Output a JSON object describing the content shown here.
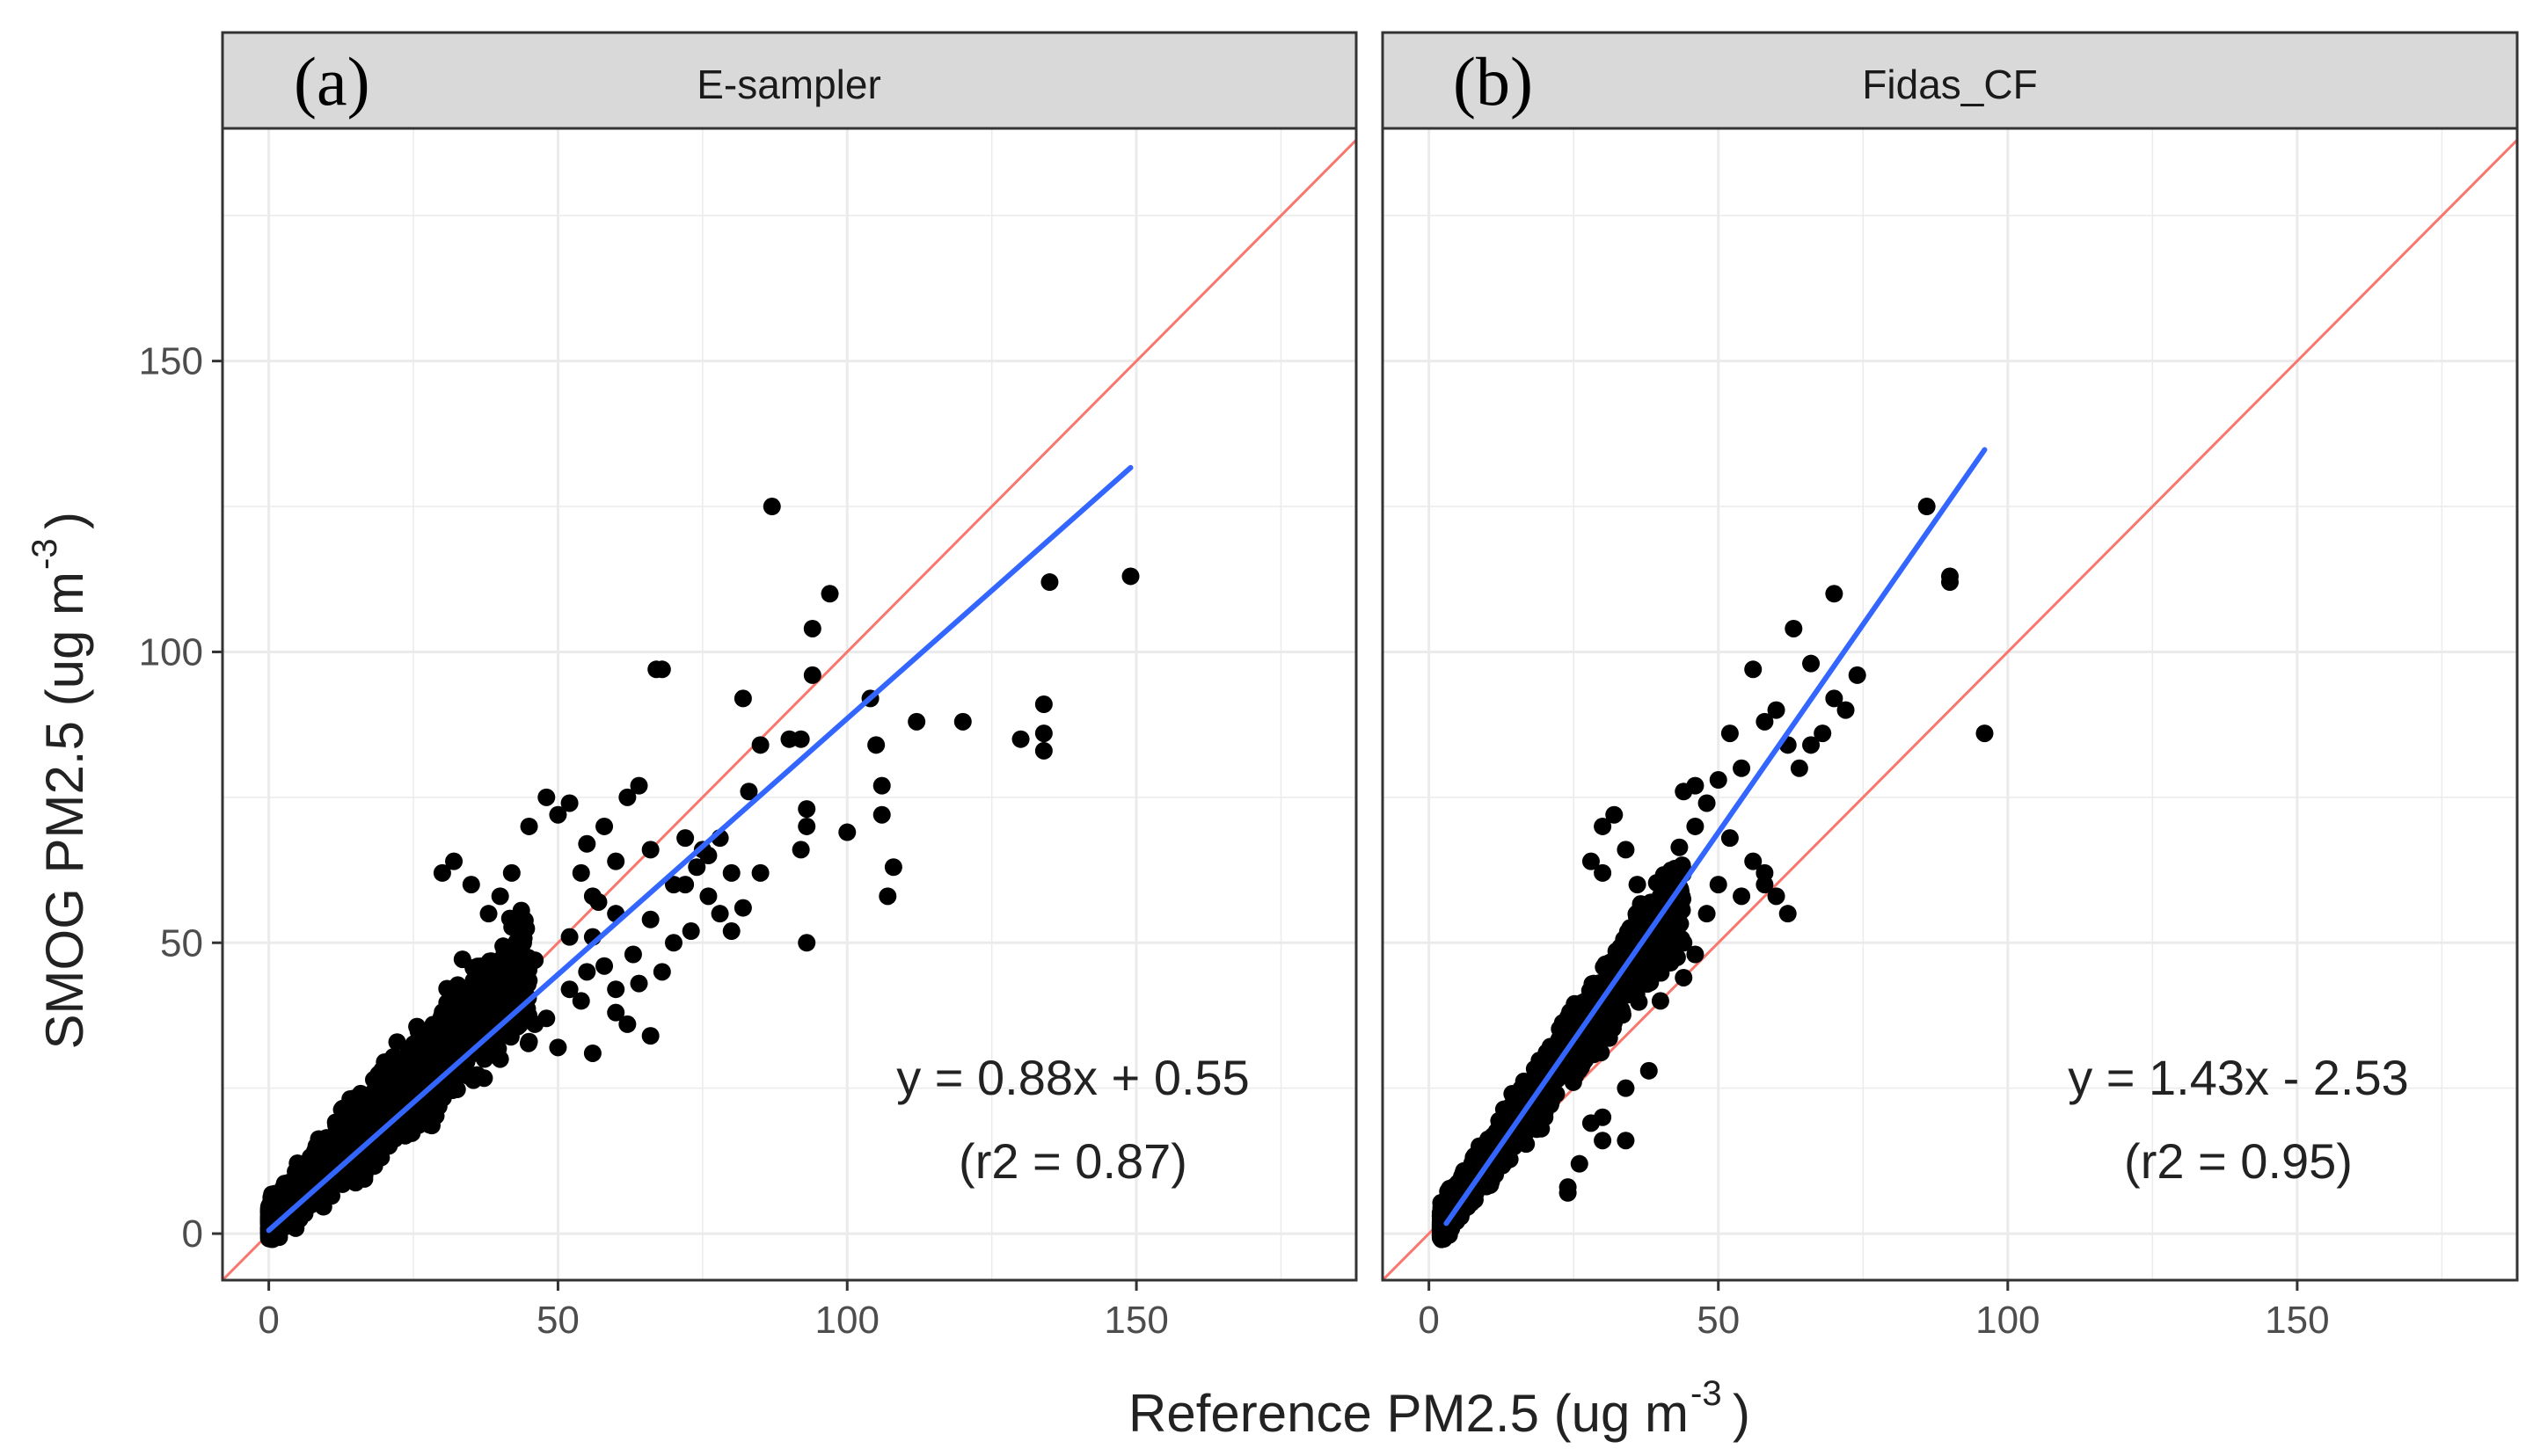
{
  "figure": {
    "x_axis_label": "Reference PM2.5 (ug m",
    "y_axis_label": "SMOG PM2.5 (ug m",
    "unit_exponent": "-3"
  },
  "chart_data": [
    {
      "type": "scatter",
      "panel_tag": "(a)",
      "title": "E-sampler",
      "xlabel": "Reference PM2.5 (ug m-3)",
      "ylabel": "SMOG PM2.5 (ug m-3)",
      "xlim": [
        -8,
        188
      ],
      "ylim": [
        -8,
        190
      ],
      "x_ticks": [
        0,
        50,
        100,
        150
      ],
      "y_ticks": [
        0,
        50,
        100,
        150
      ],
      "grid": true,
      "identity_line": {
        "slope": 1,
        "intercept": 0,
        "color": "#f8766d"
      },
      "fit_line": {
        "slope": 0.88,
        "intercept": 0.55,
        "x_range": [
          0,
          149
        ],
        "color": "#3366ff"
      },
      "annotations": [
        "y = 0.88x + 0.55",
        "(r2 = 0.87)"
      ],
      "point_color": "#000000",
      "dense_cloud": {
        "x_min": 0,
        "x_max": 45,
        "slope": 0.95,
        "intercept": 2,
        "spread": 8,
        "count": 1800,
        "seed": 11
      },
      "points": [
        [
          87,
          125
        ],
        [
          149,
          113
        ],
        [
          135,
          112
        ],
        [
          97,
          110
        ],
        [
          94,
          104
        ],
        [
          68,
          97
        ],
        [
          94,
          96
        ],
        [
          82,
          92
        ],
        [
          104,
          92
        ],
        [
          134,
          91
        ],
        [
          90,
          85
        ],
        [
          92,
          85
        ],
        [
          112,
          88
        ],
        [
          120,
          88
        ],
        [
          130,
          85
        ],
        [
          134,
          83
        ],
        [
          134,
          86
        ],
        [
          83,
          76
        ],
        [
          85,
          84
        ],
        [
          105,
          84
        ],
        [
          106,
          77
        ],
        [
          106,
          72
        ],
        [
          93,
          73
        ],
        [
          93,
          70
        ],
        [
          92,
          66
        ],
        [
          75,
          66
        ],
        [
          78,
          68
        ],
        [
          80,
          62
        ],
        [
          85,
          62
        ],
        [
          72,
          60
        ],
        [
          74,
          63
        ],
        [
          100,
          69
        ],
        [
          108,
          63
        ],
        [
          107,
          58
        ],
        [
          93,
          50
        ],
        [
          48,
          75
        ],
        [
          50,
          72
        ],
        [
          52,
          74
        ],
        [
          55,
          67
        ],
        [
          58,
          70
        ],
        [
          62,
          75
        ],
        [
          64,
          77
        ],
        [
          60,
          64
        ],
        [
          66,
          66
        ],
        [
          67,
          97
        ],
        [
          70,
          60
        ],
        [
          57,
          57
        ],
        [
          56,
          58
        ],
        [
          54,
          62
        ],
        [
          60,
          55
        ],
        [
          66,
          54
        ],
        [
          63,
          48
        ],
        [
          64,
          43
        ],
        [
          68,
          45
        ],
        [
          70,
          50
        ],
        [
          56,
          51
        ],
        [
          52,
          51
        ],
        [
          58,
          46
        ],
        [
          60,
          42
        ],
        [
          62,
          36
        ],
        [
          66,
          34
        ],
        [
          54,
          40
        ],
        [
          48,
          37
        ],
        [
          50,
          32
        ],
        [
          56,
          31
        ],
        [
          45,
          70
        ],
        [
          42,
          62
        ],
        [
          40,
          58
        ],
        [
          38,
          55
        ],
        [
          35,
          60
        ],
        [
          32,
          64
        ],
        [
          30,
          62
        ],
        [
          44,
          50
        ],
        [
          46,
          47
        ],
        [
          36,
          32
        ],
        [
          40,
          30
        ],
        [
          46,
          36
        ],
        [
          52,
          42
        ],
        [
          60,
          38
        ],
        [
          55,
          45
        ],
        [
          38,
          44
        ],
        [
          42,
          40
        ],
        [
          45,
          33
        ],
        [
          76,
          58
        ],
        [
          73,
          52
        ],
        [
          78,
          55
        ],
        [
          80,
          52
        ],
        [
          82,
          56
        ],
        [
          76,
          65
        ],
        [
          72,
          68
        ]
      ]
    },
    {
      "type": "scatter",
      "panel_tag": "(b)",
      "title": "Fidas_CF",
      "xlabel": "Reference PM2.5 (ug m-3)",
      "ylabel": "SMOG PM2.5 (ug m-3)",
      "xlim": [
        -8,
        188
      ],
      "ylim": [
        -8,
        190
      ],
      "x_ticks": [
        0,
        50,
        100,
        150
      ],
      "y_ticks": [
        0,
        50,
        100,
        150
      ],
      "grid": true,
      "identity_line": {
        "slope": 1,
        "intercept": 0,
        "color": "#f8766d"
      },
      "fit_line": {
        "slope": 1.43,
        "intercept": -2.53,
        "x_range": [
          3,
          96
        ],
        "color": "#3366ff"
      },
      "annotations": [
        "y = 1.43x - 2.53",
        "(r2 = 0.95)"
      ],
      "point_color": "#000000",
      "dense_cloud": {
        "x_min": 2,
        "x_max": 44,
        "slope": 1.35,
        "intercept": -1,
        "spread": 6,
        "count": 1700,
        "seed": 23
      },
      "points": [
        [
          86,
          125
        ],
        [
          90,
          113
        ],
        [
          90,
          112
        ],
        [
          70,
          110
        ],
        [
          63,
          104
        ],
        [
          66,
          98
        ],
        [
          74,
          96
        ],
        [
          70,
          92
        ],
        [
          72,
          90
        ],
        [
          68,
          86
        ],
        [
          66,
          84
        ],
        [
          96,
          86
        ],
        [
          56,
          97
        ],
        [
          60,
          90
        ],
        [
          58,
          88
        ],
        [
          62,
          84
        ],
        [
          64,
          80
        ],
        [
          52,
          86
        ],
        [
          54,
          80
        ],
        [
          50,
          78
        ],
        [
          46,
          77
        ],
        [
          48,
          74
        ],
        [
          44,
          76
        ],
        [
          46,
          70
        ],
        [
          52,
          68
        ],
        [
          56,
          64
        ],
        [
          58,
          60
        ],
        [
          50,
          60
        ],
        [
          54,
          58
        ],
        [
          32,
          72
        ],
        [
          30,
          70
        ],
        [
          28,
          64
        ],
        [
          30,
          62
        ],
        [
          34,
          66
        ],
        [
          36,
          60
        ],
        [
          40,
          58
        ],
        [
          42,
          52
        ],
        [
          44,
          50
        ],
        [
          46,
          48
        ],
        [
          48,
          55
        ],
        [
          58,
          62
        ],
        [
          60,
          58
        ],
        [
          62,
          55
        ],
        [
          30,
          16
        ],
        [
          24,
          7
        ],
        [
          24,
          8
        ],
        [
          34,
          16
        ],
        [
          30,
          20
        ],
        [
          40,
          40
        ],
        [
          44,
          44
        ],
        [
          38,
          28
        ],
        [
          34,
          25
        ],
        [
          26,
          12
        ],
        [
          28,
          19
        ],
        [
          20,
          20
        ],
        [
          22,
          24
        ]
      ]
    }
  ]
}
